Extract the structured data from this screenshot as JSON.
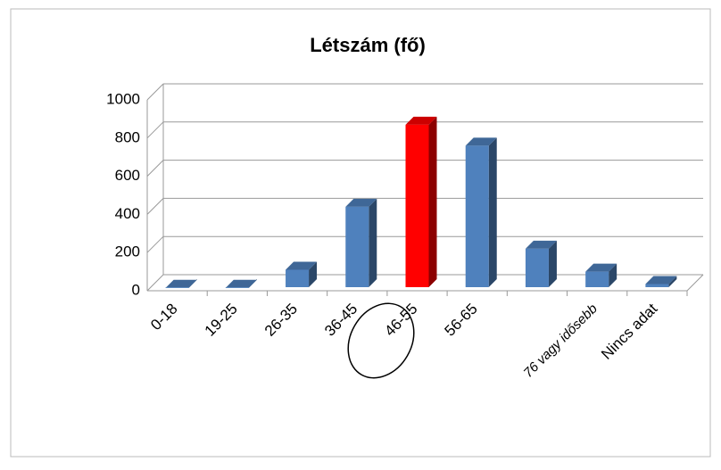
{
  "chart_data": {
    "type": "bar3d",
    "title": "Létszám (fő)",
    "categories": [
      "0-18",
      "19-25",
      "26-35",
      "36-45",
      "46-55",
      "56-65",
      null,
      "76 vagy idősebb",
      "Nincs adat"
    ],
    "values": [
      15,
      15,
      110,
      440,
      870,
      760,
      220,
      100,
      35
    ],
    "colors": [
      "#4f81bd",
      "#4f81bd",
      "#4f81bd",
      "#4f81bd",
      "#ff0000",
      "#4f81bd",
      "#4f81bd",
      "#4f81bd",
      "#4f81bd"
    ],
    "ylim": [
      0,
      1000
    ],
    "yticks": [
      0,
      200,
      400,
      600,
      800,
      1000
    ],
    "grid": true
  }
}
